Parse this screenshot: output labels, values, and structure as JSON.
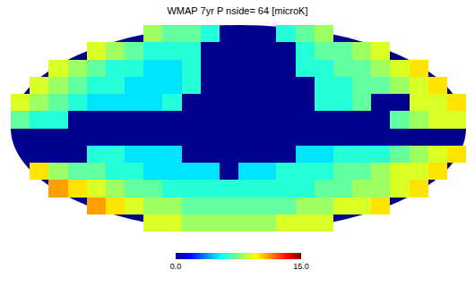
{
  "chart_data": {
    "type": "heatmap",
    "title": "WMAP 7yr P nside= 64 [microK]",
    "tick_labels": false,
    "cells": [
      [
        null,
        null,
        null,
        null,
        null,
        null,
        null,
        8,
        7,
        7,
        6,
        null,
        null,
        null,
        6,
        7,
        8,
        null,
        null,
        null,
        null,
        null,
        null,
        null
      ],
      [
        null,
        null,
        null,
        null,
        9,
        8,
        7,
        6,
        6,
        6,
        null,
        null,
        null,
        null,
        null,
        6,
        7,
        7,
        8,
        9,
        null,
        null,
        null,
        null
      ],
      [
        null,
        null,
        9,
        8,
        7,
        6,
        6,
        5,
        5,
        6,
        null,
        null,
        null,
        null,
        null,
        6,
        6,
        7,
        7,
        8,
        9,
        10,
        null,
        null
      ],
      [
        null,
        9,
        8,
        7,
        6,
        6,
        5,
        5,
        5,
        6,
        null,
        null,
        null,
        null,
        null,
        null,
        6,
        6,
        7,
        7,
        8,
        9,
        10,
        null
      ],
      [
        9,
        8,
        7,
        6,
        5,
        5,
        5,
        5,
        6,
        null,
        null,
        null,
        null,
        null,
        null,
        null,
        6,
        6,
        7,
        null,
        null,
        9,
        9,
        10
      ],
      [
        7,
        6,
        6,
        null,
        null,
        null,
        null,
        null,
        null,
        null,
        null,
        null,
        null,
        null,
        null,
        null,
        null,
        null,
        null,
        null,
        7,
        8,
        9,
        9
      ],
      [
        null,
        null,
        null,
        null,
        null,
        null,
        null,
        null,
        null,
        null,
        null,
        null,
        null,
        null,
        null,
        null,
        null,
        null,
        null,
        null,
        null,
        null,
        null,
        null
      ],
      [
        null,
        null,
        null,
        null,
        6,
        6,
        5,
        5,
        5,
        null,
        null,
        null,
        null,
        null,
        null,
        5,
        5,
        6,
        6,
        6,
        7,
        8,
        9,
        10
      ],
      [
        null,
        10,
        8,
        7,
        7,
        6,
        6,
        5,
        5,
        5,
        5,
        null,
        5,
        5,
        6,
        6,
        6,
        7,
        7,
        8,
        9,
        9,
        10,
        null
      ],
      [
        null,
        null,
        11,
        10,
        9,
        8,
        7,
        7,
        6,
        6,
        6,
        6,
        6,
        6,
        6,
        6,
        7,
        7,
        8,
        8,
        9,
        10,
        null,
        null
      ],
      [
        null,
        null,
        null,
        null,
        11,
        10,
        9,
        8,
        8,
        7,
        7,
        7,
        7,
        7,
        7,
        8,
        8,
        9,
        9,
        10,
        null,
        null,
        null,
        null
      ],
      [
        null,
        null,
        null,
        null,
        null,
        null,
        null,
        9,
        9,
        8,
        8,
        8,
        8,
        8,
        9,
        9,
        9,
        null,
        null,
        null,
        null,
        null,
        null,
        null
      ]
    ],
    "colorbar": {
      "range": [
        0,
        15
      ],
      "ticks": [
        {
          "value": 0,
          "label": "0.0"
        },
        {
          "value": 15,
          "label": "15.0"
        }
      ]
    }
  }
}
